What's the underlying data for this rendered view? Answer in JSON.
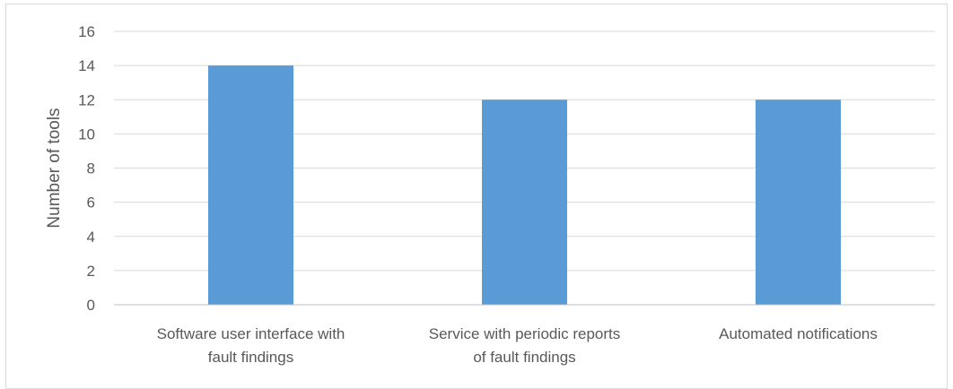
{
  "chart_data": {
    "type": "bar",
    "categories": [
      [
        "Software user interface with",
        "fault findings"
      ],
      [
        "Service with periodic reports",
        "of fault findings"
      ],
      [
        "Automated notifications"
      ]
    ],
    "values": [
      14,
      12,
      12
    ],
    "ylabel": "Number of tools",
    "xlabel": "",
    "ylim": [
      0,
      16
    ],
    "yticks": [
      0,
      2,
      4,
      6,
      8,
      10,
      12,
      14,
      16
    ],
    "grid": true,
    "legend": "none",
    "bar_color": "#5b9bd5",
    "grid_color": "#d9d9d9",
    "axis_color": "#bfbfbf",
    "text_color": "#595959"
  }
}
